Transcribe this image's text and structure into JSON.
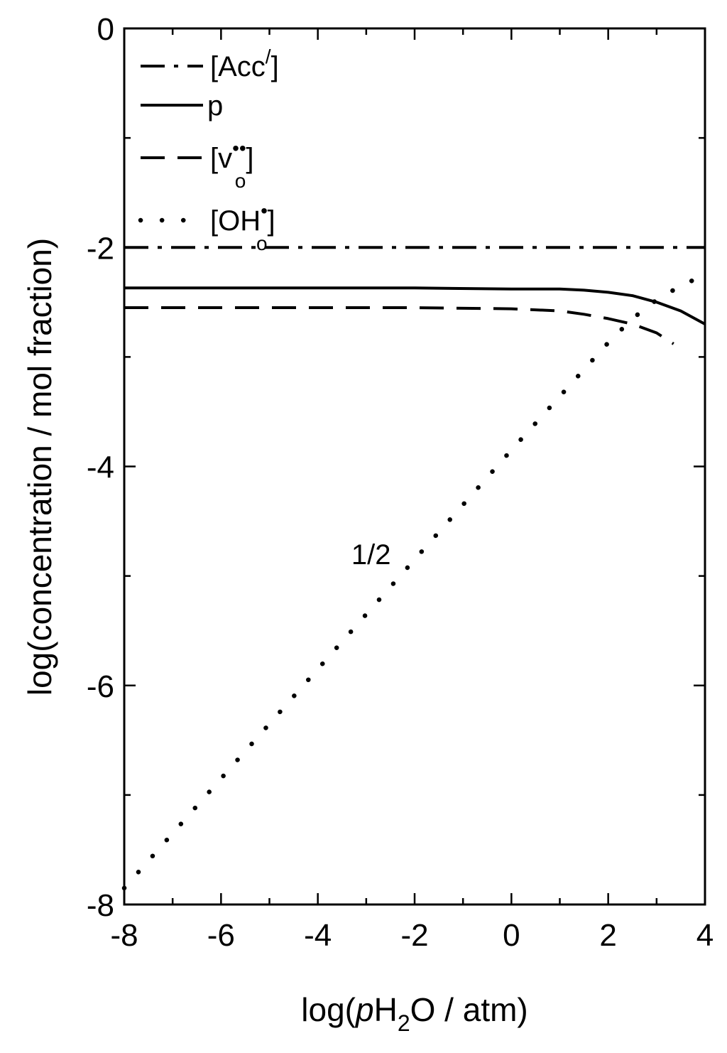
{
  "chart_data": {
    "type": "line",
    "xlabel": {
      "pre": "log(",
      "italic": "p",
      "mid": "H",
      "sub": "2",
      "post": "O / atm)"
    },
    "ylabel": "log(concentration / mol fraction)",
    "xlim": [
      -8,
      4
    ],
    "ylim": [
      -8,
      0
    ],
    "x_ticks": [
      -8,
      -6,
      -4,
      -2,
      0,
      2,
      4
    ],
    "x_tick_labels": [
      "-8",
      "-6",
      "-4",
      "-2",
      "0",
      "2",
      "4"
    ],
    "y_ticks": [
      0,
      -2,
      -4,
      -6,
      -8
    ],
    "y_tick_labels": [
      "0",
      "-2",
      "-4",
      "-6",
      "-8"
    ],
    "grid": false,
    "legend_position": "top-left",
    "series": [
      {
        "name": "[Acc/]",
        "legend": {
          "base": "[Acc",
          "sup": "/",
          "sub": "",
          "close": "]"
        },
        "style": "dashdot",
        "x": [
          -8,
          4
        ],
        "y": [
          -2.0,
          -2.0
        ]
      },
      {
        "name": "p",
        "legend": {
          "base": "p",
          "sup": "",
          "sub": "",
          "close": ""
        },
        "style": "solid",
        "x": [
          -8,
          -6,
          -4,
          -2,
          0,
          1,
          1.5,
          2,
          2.5,
          3,
          3.5,
          4
        ],
        "y": [
          -2.37,
          -2.37,
          -2.37,
          -2.37,
          -2.38,
          -2.38,
          -2.39,
          -2.41,
          -2.44,
          -2.5,
          -2.58,
          -2.7
        ]
      },
      {
        "name": "[vo••]",
        "legend": {
          "base": "[v",
          "sup": "••",
          "sub": "o",
          "close": "]"
        },
        "style": "dashed",
        "x": [
          -8,
          -6,
          -4,
          -2,
          0,
          1,
          1.5,
          2,
          2.5,
          3,
          3.35
        ],
        "y": [
          -2.55,
          -2.55,
          -2.55,
          -2.55,
          -2.56,
          -2.58,
          -2.61,
          -2.65,
          -2.7,
          -2.78,
          -2.88
        ]
      },
      {
        "name": "[OHo•]",
        "legend": {
          "base": "[OH",
          "sup": "•",
          "sub": "o",
          "close": "]"
        },
        "style": "dotted",
        "x": [
          -8,
          -6,
          -4,
          -2,
          0,
          2,
          2.5,
          3,
          3.5,
          4
        ],
        "y": [
          -7.85,
          -6.85,
          -5.85,
          -4.85,
          -3.85,
          -2.87,
          -2.65,
          -2.48,
          -2.35,
          -2.25
        ]
      }
    ],
    "annotations": [
      {
        "text": "1/2",
        "x": -2.9,
        "y": -4.8
      }
    ]
  }
}
